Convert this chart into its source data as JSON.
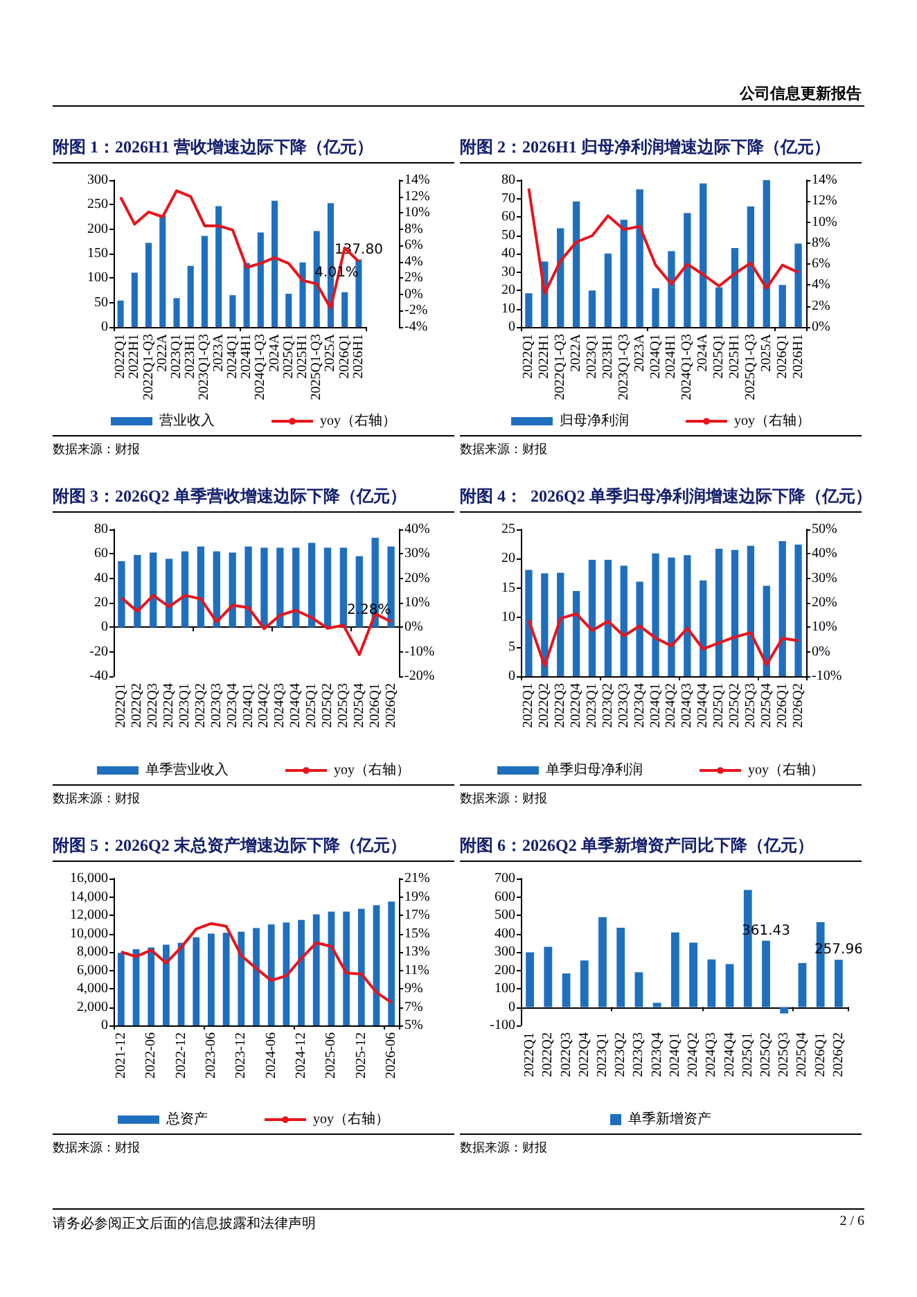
{
  "chart_data": [
    {
      "type": "bar",
      "title": "附图 1：2026H1 营收增速边际下降（亿元）",
      "annotations": [
        "公司信息更新报告",
        "数据来源：财报"
      ],
      "legend": "bottom",
      "categories": [
        "2022Q1",
        "2022H1",
        "2022Q1-Q3",
        "2022A",
        "2023Q1",
        "2023H1",
        "2023Q1-Q3",
        "2023A",
        "2024Q1",
        "2024H1",
        "2024Q1-Q3",
        "2024A",
        "2025Q1",
        "2025H1",
        "2025Q1-Q3",
        "2025A",
        "2026Q1",
        "2026H1"
      ],
      "ylim": [
        0,
        300
      ],
      "yticks": [
        0,
        50,
        100,
        150,
        200,
        250,
        300
      ],
      "y2lim": [
        -4,
        14
      ],
      "y2ticks": [
        {
          "value": -4,
          "label": "-4%"
        },
        {
          "value": -2,
          "label": "-2%"
        },
        {
          "value": 0,
          "label": "0%"
        },
        {
          "value": 2,
          "label": "2%"
        },
        {
          "value": 4,
          "label": "4%"
        },
        {
          "value": 6,
          "label": "6%"
        },
        {
          "value": 8,
          "label": "8%"
        },
        {
          "value": 10,
          "label": "10%"
        },
        {
          "value": 12,
          "label": "12%"
        },
        {
          "value": 14,
          "label": "14%"
        }
      ],
      "series": [
        {
          "name": "营业收入",
          "color": "#1f6fbf",
          "values": [
            54,
            111,
            172,
            227,
            59,
            125,
            186,
            247,
            65,
            131,
            193,
            258,
            68,
            132,
            196,
            253,
            71,
            137.8
          ],
          "value_labels": [
            null,
            null,
            null,
            null,
            null,
            null,
            null,
            null,
            null,
            null,
            null,
            null,
            null,
            null,
            null,
            null,
            null,
            "137.80"
          ]
        },
        {
          "name": "yoy（右轴）",
          "type": "line",
          "axis": "y2",
          "color": "#e8141c",
          "values": [
            11.9,
            8.6,
            10.1,
            9.5,
            12.7,
            12.0,
            8.4,
            8.4,
            7.9,
            3.3,
            3.8,
            4.5,
            3.8,
            1.7,
            1.3,
            -1.7,
            5.7,
            4.01
          ],
          "value_labels": [
            null,
            null,
            null,
            null,
            null,
            null,
            null,
            null,
            null,
            null,
            null,
            null,
            null,
            null,
            null,
            null,
            null,
            "4.01%"
          ]
        }
      ]
    },
    {
      "type": "bar",
      "title": "附图 2：2026H1 归母净利润增速边际下降（亿元）",
      "annotations": [
        "数据来源：财报"
      ],
      "legend": "bottom",
      "categories": [
        "2022Q1",
        "2022H1",
        "2022Q1-Q3",
        "2022A",
        "2023Q1",
        "2023H1",
        "2023Q1-Q3",
        "2023A",
        "2024Q1",
        "2024H1",
        "2024Q1-Q3",
        "2024A",
        "2025Q1",
        "2025H1",
        "2025Q1-Q3",
        "2025A",
        "2026Q1",
        "2026H1"
      ],
      "ylim": [
        0,
        80
      ],
      "yticks": [
        0,
        10,
        20,
        30,
        40,
        50,
        60,
        70,
        80
      ],
      "y2lim": [
        0,
        14
      ],
      "y2ticks": [
        {
          "value": 0,
          "label": "0%"
        },
        {
          "value": 2,
          "label": "2%"
        },
        {
          "value": 4,
          "label": "4%"
        },
        {
          "value": 6,
          "label": "6%"
        },
        {
          "value": 8,
          "label": "8%"
        },
        {
          "value": 10,
          "label": "10%"
        },
        {
          "value": 12,
          "label": "12%"
        },
        {
          "value": 14,
          "label": "14%"
        }
      ],
      "series": [
        {
          "name": "归母净利润",
          "color": "#1f6fbf",
          "values": [
            18.4,
            35.7,
            53.8,
            68.4,
            19.9,
            40,
            58.4,
            75,
            21.1,
            41.3,
            62.1,
            78.2,
            21.6,
            43,
            65.7,
            80,
            22.9,
            45.5
          ]
        },
        {
          "name": "yoy（右轴）",
          "type": "line",
          "axis": "y2",
          "color": "#e8141c",
          "values": [
            13.2,
            3.2,
            6.3,
            8.1,
            8.7,
            10.6,
            9.3,
            9.6,
            5.9,
            4.1,
            6.0,
            5.0,
            3.9,
            5.1,
            6.1,
            3.7,
            5.9,
            5.2
          ]
        }
      ]
    },
    {
      "type": "bar",
      "title": "附图 3：2026Q2 单季营收增速边际下降（亿元）",
      "annotations": [
        "数据来源：财报"
      ],
      "legend": "bottom",
      "categories": [
        "2022Q1",
        "2022Q2",
        "2022Q3",
        "2022Q4",
        "2023Q1",
        "2023Q2",
        "2023Q3",
        "2023Q4",
        "2024Q1",
        "2024Q2",
        "2024Q3",
        "2024Q4",
        "2025Q1",
        "2025Q2",
        "2025Q3",
        "2025Q4",
        "2026Q1",
        "2026Q2"
      ],
      "ylim": [
        -40,
        80
      ],
      "yticks": [
        -40,
        -20,
        0,
        20,
        40,
        60,
        80
      ],
      "y2lim": [
        -20,
        40
      ],
      "y2ticks": [
        {
          "value": -20,
          "label": "-20%"
        },
        {
          "value": -10,
          "label": "-10%"
        },
        {
          "value": 0,
          "label": "0%"
        },
        {
          "value": 10,
          "label": "10%"
        },
        {
          "value": 20,
          "label": "20%"
        },
        {
          "value": 30,
          "label": "30%"
        },
        {
          "value": 40,
          "label": "40%"
        }
      ],
      "series": [
        {
          "name": "单季营业收入",
          "color": "#1f6fbf",
          "values": [
            54,
            59,
            61,
            56,
            62,
            66,
            62,
            61,
            66,
            65,
            65,
            65,
            69,
            65,
            65,
            58,
            73,
            66
          ]
        },
        {
          "name": "yoy（右轴）",
          "type": "line",
          "axis": "y2",
          "color": "#e8141c",
          "values": [
            12,
            6.5,
            13,
            8.4,
            13,
            11.6,
            2.2,
            9,
            8,
            -0.6,
            4.9,
            6.9,
            3.9,
            -0.4,
            0.8,
            -11.2,
            5.5,
            2.28
          ],
          "value_labels": [
            null,
            null,
            null,
            null,
            null,
            null,
            null,
            null,
            null,
            null,
            null,
            null,
            null,
            null,
            null,
            null,
            null,
            "2.28%"
          ]
        }
      ]
    },
    {
      "type": "bar",
      "title": "附图 4：  2026Q2 单季归母净利润增速边际下降（亿元）",
      "annotations": [
        "数据来源：财报"
      ],
      "legend": "bottom",
      "categories": [
        "2022Q1",
        "2022Q2",
        "2022Q3",
        "2022Q4",
        "2023Q1",
        "2023Q2",
        "2023Q3",
        "2023Q4",
        "2024Q1",
        "2024Q2",
        "2024Q3",
        "2024Q4",
        "2025Q1",
        "2025Q2",
        "2025Q3",
        "2025Q4",
        "2026Q1",
        "2026Q2"
      ],
      "ylim": [
        0,
        25
      ],
      "yticks": [
        0,
        5,
        10,
        15,
        20,
        25
      ],
      "y2lim": [
        -10,
        50
      ],
      "y2ticks": [
        {
          "value": -10,
          "label": "-10%"
        },
        {
          "value": 0,
          "label": "0%"
        },
        {
          "value": 10,
          "label": "10%"
        },
        {
          "value": 20,
          "label": "20%"
        },
        {
          "value": 30,
          "label": "30%"
        },
        {
          "value": 40,
          "label": "40%"
        },
        {
          "value": 50,
          "label": "50%"
        }
      ],
      "series": [
        {
          "name": "单季归母净利润",
          "color": "#1f6fbf",
          "values": [
            18.1,
            17.5,
            17.6,
            14.5,
            19.8,
            19.8,
            18.8,
            16.1,
            20.9,
            20.2,
            20.6,
            16.3,
            21.7,
            21.5,
            22.2,
            15.4,
            23,
            22.4
          ]
        },
        {
          "name": "yoy（右轴）",
          "type": "line",
          "axis": "y2",
          "color": "#e8141c",
          "values": [
            12.9,
            -5.8,
            13.6,
            15.5,
            8.7,
            12.4,
            6.5,
            10.5,
            5.6,
            2.4,
            9.6,
            1.1,
            3.6,
            6,
            7.8,
            -5.3,
            5.5,
            4.5
          ]
        }
      ]
    },
    {
      "type": "bar",
      "title": "附图 5：2026Q2 末总资产增速边际下降（亿元）",
      "annotations": [
        "数据来源：财报"
      ],
      "legend": "bottom",
      "categories": [
        "2021-12",
        null,
        "2022-06",
        null,
        "2022-12",
        null,
        "2023-06",
        null,
        "2023-12",
        null,
        "2024-06",
        null,
        "2024-12",
        null,
        "2025-06",
        null,
        "2025-12",
        null,
        "2026-06"
      ],
      "ylim": [
        0,
        16000
      ],
      "yticks": [
        0,
        {
          "value": 2000,
          "label": "2,000"
        },
        {
          "value": 4000,
          "label": "4,000"
        },
        {
          "value": 6000,
          "label": "6,000"
        },
        {
          "value": 8000,
          "label": "8,000"
        },
        {
          "value": 10000,
          "label": "10,000"
        },
        {
          "value": 12000,
          "label": "12,000"
        },
        {
          "value": 14000,
          "label": "14,000"
        },
        {
          "value": 16000,
          "label": "16,000"
        }
      ],
      "y2lim": [
        5,
        21
      ],
      "y2ticks": [
        {
          "value": 5,
          "label": "5%"
        },
        {
          "value": 7,
          "label": "7%"
        },
        {
          "value": 9,
          "label": "9%"
        },
        {
          "value": 11,
          "label": "11%"
        },
        {
          "value": 13,
          "label": "13%"
        },
        {
          "value": 15,
          "label": "15%"
        },
        {
          "value": 17,
          "label": "17%"
        },
        {
          "value": 19,
          "label": "19%"
        },
        {
          "value": 21,
          "label": "21%"
        }
      ],
      "series": [
        {
          "name": "总资产",
          "color": "#1f6fbf",
          "values": [
            7900,
            8300,
            8500,
            8800,
            9000,
            9600,
            10000,
            10100,
            10200,
            10600,
            11000,
            11200,
            11500,
            12100,
            12400,
            12400,
            12700,
            13100,
            13500
          ]
        },
        {
          "name": "yoy（右轴）",
          "type": "line",
          "axis": "y2",
          "color": "#e8141c",
          "values": [
            13.0,
            12.5,
            13.2,
            11.8,
            13.5,
            15.5,
            16.1,
            15.8,
            12.6,
            11.2,
            9.9,
            10.4,
            12.3,
            14.0,
            13.6,
            10.7,
            10.6,
            8.6,
            7.5
          ]
        }
      ]
    },
    {
      "type": "bar",
      "title": "附图 6：2026Q2 单季新增资产同比下降（亿元）",
      "annotations": [
        "数据来源：财报",
        "请务必参阅正文后面的信息披露和法律声明",
        "2 / 6"
      ],
      "legend": "bottom",
      "categories": [
        "2022Q1",
        "2022Q2",
        "2022Q3",
        "2022Q4",
        "2023Q1",
        "2023Q2",
        "2023Q3",
        "2023Q4",
        "2024Q1",
        "2024Q2",
        "2024Q3",
        "2024Q4",
        "2025Q1",
        "2025Q2",
        "2025Q3",
        "2025Q4",
        "2026Q1",
        "2026Q2"
      ],
      "ylim": [
        -100,
        700
      ],
      "yticks": [
        -100,
        0,
        100,
        200,
        300,
        400,
        500,
        600,
        700
      ],
      "series": [
        {
          "name": "单季新增资产",
          "color": "#1f6fbf",
          "values": [
            298,
            328,
            183,
            254,
            490,
            432,
            190,
            23,
            407,
            351,
            259,
            234,
            638,
            361.43,
            -35,
            240,
            462,
            257.96
          ],
          "value_labels": [
            null,
            null,
            null,
            null,
            null,
            null,
            null,
            null,
            null,
            null,
            null,
            null,
            null,
            "361.43",
            null,
            null,
            null,
            "257.96"
          ]
        }
      ]
    }
  ]
}
